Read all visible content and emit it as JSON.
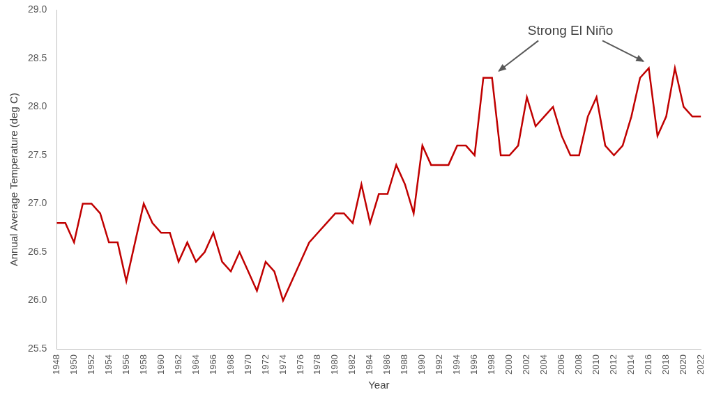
{
  "chart_data": {
    "type": "line",
    "x_label": "Year",
    "y_label": "Annual Average Temperature (deg C)",
    "x": [
      1948,
      1949,
      1950,
      1951,
      1952,
      1953,
      1954,
      1955,
      1956,
      1957,
      1958,
      1959,
      1960,
      1961,
      1962,
      1963,
      1964,
      1965,
      1966,
      1967,
      1968,
      1969,
      1970,
      1971,
      1972,
      1973,
      1974,
      1975,
      1976,
      1977,
      1978,
      1979,
      1980,
      1981,
      1982,
      1983,
      1984,
      1985,
      1986,
      1987,
      1988,
      1989,
      1990,
      1991,
      1992,
      1993,
      1994,
      1995,
      1996,
      1997,
      1998,
      1999,
      2000,
      2001,
      2002,
      2003,
      2004,
      2005,
      2006,
      2007,
      2008,
      2009,
      2010,
      2011,
      2012,
      2013,
      2014,
      2015,
      2016,
      2017,
      2018,
      2019,
      2020,
      2021,
      2022
    ],
    "values": [
      26.8,
      26.8,
      26.6,
      27.0,
      27.0,
      26.9,
      26.6,
      26.6,
      26.2,
      26.6,
      27.0,
      26.8,
      26.7,
      26.7,
      26.4,
      26.6,
      26.4,
      26.5,
      26.7,
      26.4,
      26.3,
      26.5,
      26.3,
      26.1,
      26.4,
      26.3,
      26.0,
      26.2,
      26.4,
      26.6,
      26.7,
      26.8,
      26.9,
      26.9,
      26.8,
      27.2,
      26.8,
      27.1,
      27.1,
      27.4,
      27.2,
      26.9,
      27.6,
      27.4,
      27.4,
      27.4,
      27.6,
      27.6,
      27.5,
      28.3,
      28.3,
      27.5,
      27.5,
      27.6,
      28.1,
      27.8,
      27.9,
      28.0,
      27.7,
      27.5,
      27.5,
      27.9,
      28.1,
      27.6,
      27.5,
      27.6,
      27.9,
      28.3,
      28.4,
      27.7,
      27.9,
      28.4,
      28.0,
      27.9,
      27.9
    ],
    "color": "#c00000",
    "marker": "none",
    "line_style": "solid",
    "xlim": [
      1948,
      2022
    ],
    "xticks": [
      1948,
      1950,
      1952,
      1954,
      1956,
      1958,
      1960,
      1962,
      1964,
      1966,
      1968,
      1970,
      1972,
      1974,
      1976,
      1978,
      1980,
      1982,
      1984,
      1986,
      1988,
      1990,
      1992,
      1994,
      1996,
      1998,
      2000,
      2002,
      2004,
      2006,
      2008,
      2010,
      2012,
      2014,
      2016,
      2018,
      2020,
      2022
    ],
    "ylim": [
      25.5,
      29.0
    ],
    "yticks": [
      25.5,
      {
        "value": 26,
        "label": "26.0"
      },
      26.5,
      {
        "value": 27,
        "label": "27.0"
      },
      27.5,
      {
        "value": 28,
        "label": "28.0"
      },
      28.5,
      {
        "value": 29,
        "label": "29.0"
      }
    ],
    "grid": false,
    "annotations": [
      {
        "text": "Strong El Niño",
        "targets": [
          1998,
          2016
        ]
      }
    ]
  }
}
